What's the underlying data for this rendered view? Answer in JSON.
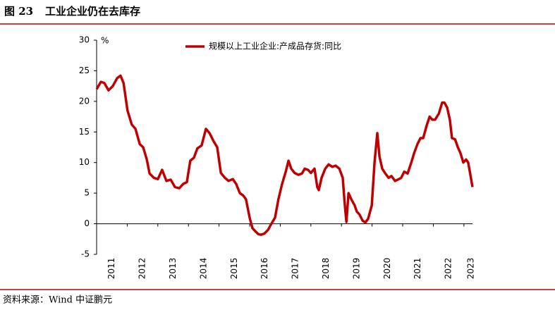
{
  "chart_data": {
    "type": "line",
    "figure_label": "图 23",
    "title": "工业企业仍在去库存",
    "source": "资料来源：Wind   中证鹏元",
    "y_unit": "%",
    "series": [
      {
        "name": "规模以上工业企业:产成品存货:同比",
        "color": "#c00000",
        "x": [
          2011.0,
          2011.14,
          2011.25,
          2011.39,
          2011.53,
          2011.67,
          2011.78,
          2011.88,
          2012.01,
          2012.15,
          2012.27,
          2012.41,
          2012.52,
          2012.64,
          2012.73,
          2012.87,
          2013.0,
          2013.14,
          2013.28,
          2013.42,
          2013.56,
          2013.7,
          2013.83,
          2013.95,
          2014.06,
          2014.18,
          2014.29,
          2014.43,
          2014.57,
          2014.69,
          2014.82,
          2014.94,
          2015.06,
          2015.19,
          2015.31,
          2015.45,
          2015.56,
          2015.68,
          2015.79,
          2015.88,
          2016.0,
          2016.09,
          2016.18,
          2016.28,
          2016.37,
          2016.48,
          2016.6,
          2016.71,
          2016.83,
          2016.94,
          2017.06,
          2017.18,
          2017.27,
          2017.36,
          2017.47,
          2017.59,
          2017.71,
          2017.8,
          2017.91,
          2018.0,
          2018.12,
          2018.21,
          2018.26,
          2018.35,
          2018.47,
          2018.58,
          2018.7,
          2018.81,
          2018.93,
          2019.04,
          2019.11,
          2019.16,
          2019.23,
          2019.32,
          2019.43,
          2019.5,
          2019.59,
          2019.69,
          2019.78,
          2019.87,
          2019.99,
          2020.08,
          2020.17,
          2020.24,
          2020.33,
          2020.42,
          2020.54,
          2020.63,
          2020.75,
          2020.84,
          2020.95,
          2021.05,
          2021.16,
          2021.28,
          2021.37,
          2021.48,
          2021.58,
          2021.67,
          2021.78,
          2021.88,
          2021.97,
          2022.06,
          2022.18,
          2022.29,
          2022.36,
          2022.45,
          2022.54,
          2022.61,
          2022.71,
          2022.8,
          2022.89,
          2022.98,
          2023.07,
          2023.14,
          2023.21,
          2023.28
        ],
        "values": [
          22,
          23.2,
          23,
          21.8,
          22.5,
          23.8,
          24.2,
          23,
          18.5,
          16.2,
          15.5,
          13,
          12.5,
          10.5,
          8.2,
          7.5,
          7.3,
          8.8,
          7,
          7.2,
          6,
          5.8,
          6.5,
          6.8,
          10.3,
          10.8,
          12.3,
          12.8,
          15.5,
          14.8,
          13.5,
          12.5,
          8.3,
          7.5,
          7,
          7.3,
          6.5,
          5,
          4.6,
          4,
          1,
          -0.7,
          -1.2,
          -1.7,
          -1.8,
          -1.6,
          -1,
          0,
          1,
          4,
          6.5,
          8.5,
          10.3,
          9,
          8.3,
          8,
          8.2,
          9,
          8.8,
          8.3,
          9,
          6,
          5.5,
          7.5,
          9,
          9.7,
          9.3,
          9.5,
          9,
          7.5,
          3,
          0.3,
          5,
          4,
          3,
          2,
          1.5,
          0.5,
          0.2,
          0.8,
          3,
          10,
          14.8,
          11,
          9,
          8.3,
          7.5,
          7.8,
          7,
          7.2,
          7.5,
          8.5,
          8.2,
          10,
          11.5,
          13,
          14,
          14,
          16,
          17.5,
          17,
          17,
          18,
          19.8,
          19.8,
          19,
          17,
          14,
          13.8,
          12.5,
          11.5,
          10,
          10.5,
          10,
          8,
          6
        ]
      }
    ],
    "xlim": [
      2011,
      2023.28
    ],
    "xticks": [
      2011,
      2012,
      2013,
      2014,
      2015,
      2016,
      2017,
      2018,
      2019,
      2020,
      2021,
      2022,
      2023
    ],
    "ylim": [
      -5,
      30
    ],
    "yticks": [
      -5,
      0,
      5,
      10,
      15,
      20,
      25,
      30
    ],
    "legend": "top"
  }
}
